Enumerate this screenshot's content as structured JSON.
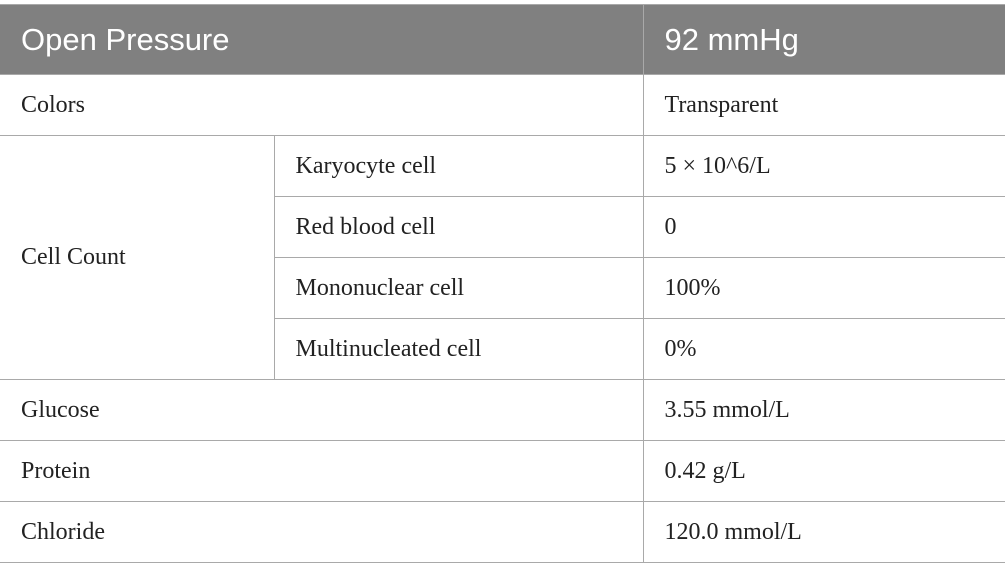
{
  "header": {
    "label": "Open Pressure",
    "value": "92 mmHg"
  },
  "rows": {
    "colors": {
      "label": "Colors",
      "value": "Transparent"
    },
    "cell_count": {
      "label": "Cell Count",
      "items": [
        {
          "label": "Karyocyte cell",
          "value": "5 × 10^6/L"
        },
        {
          "label": "Red blood cell",
          "value": "0"
        },
        {
          "label": "Mononuclear cell",
          "value": "100%"
        },
        {
          "label": "Multinucleated cell",
          "value": "0%"
        }
      ]
    },
    "glucose": {
      "label": "Glucose",
      "value": "3.55 mmol/L"
    },
    "protein": {
      "label": "Protein",
      "value": "0.42 g/L"
    },
    "chloride": {
      "label": "Chloride",
      "value": "120.0 mmol/L"
    }
  }
}
